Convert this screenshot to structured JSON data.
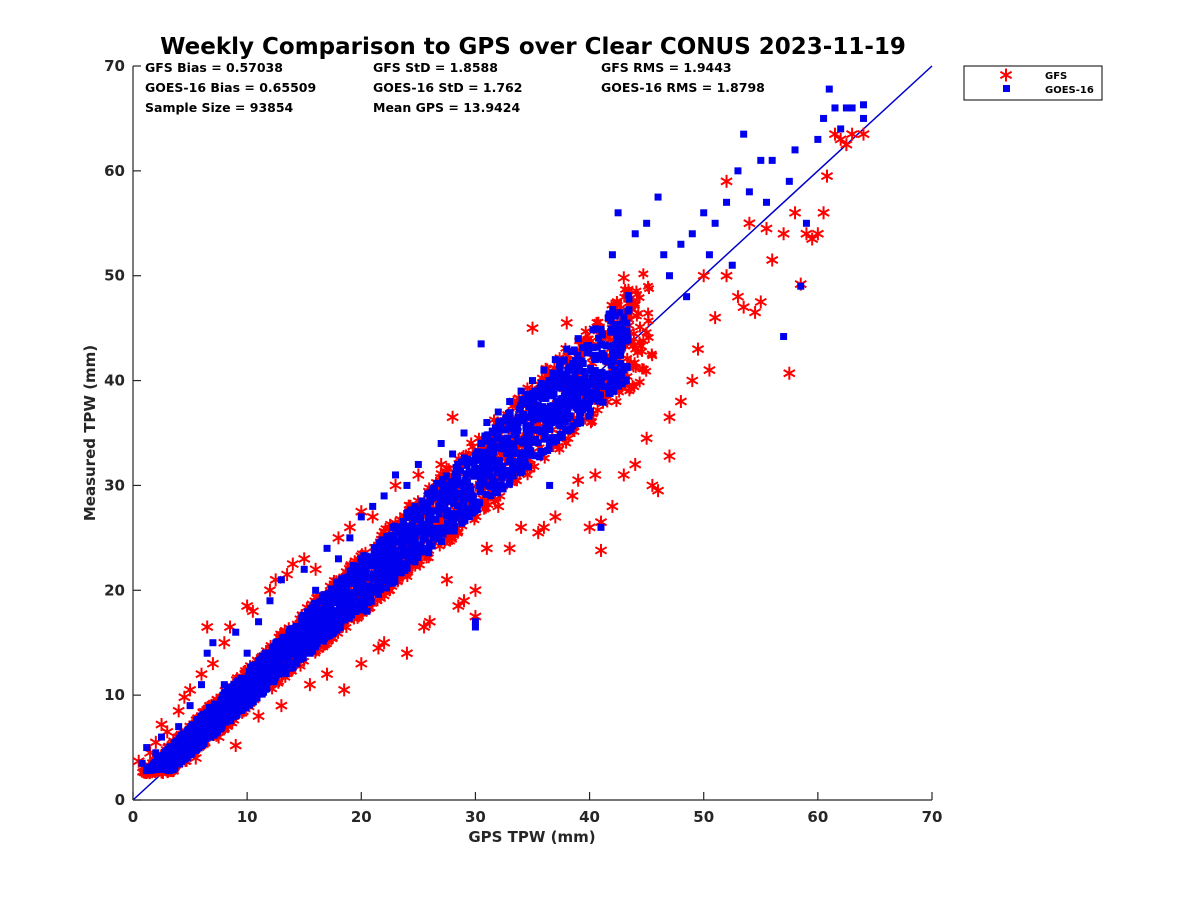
{
  "chart_data": {
    "type": "scatter",
    "title": "Weekly Comparison to GPS over Clear CONUS 2023-11-19",
    "xlabel": "GPS TPW (mm)",
    "ylabel": "Measured TPW (mm)",
    "xlim": [
      0,
      70
    ],
    "ylim": [
      0,
      70
    ],
    "xticks": [
      0,
      10,
      20,
      30,
      40,
      50,
      60,
      70
    ],
    "yticks": [
      0,
      10,
      20,
      30,
      40,
      50,
      60,
      70
    ],
    "legend_position": "outside-top-right",
    "grid": false,
    "reference_line": {
      "type": "one-to-one",
      "from": [
        0,
        0
      ],
      "to": [
        70,
        70
      ],
      "color": "#0000cc"
    },
    "stats": {
      "gfs_bias": "GFS Bias = 0.57038",
      "gfs_std": "GFS StD = 1.8588",
      "gfs_rms": "GFS RMS = 1.9443",
      "goes_bias": "GOES-16 Bias = 0.65509",
      "goes_std": "GOES-16 StD = 1.762",
      "goes_rms": "GOES-16 RMS = 1.8798",
      "sample_size": "Sample Size = 93854",
      "mean_gps": "Mean GPS = 13.9424"
    },
    "series": [
      {
        "name": "GFS",
        "marker": "asterisk",
        "color": "#ff0000",
        "points": [
          [
            0.5,
            3.7
          ],
          [
            1,
            3.2
          ],
          [
            1.5,
            4.5
          ],
          [
            2,
            5.5
          ],
          [
            2.5,
            7.2
          ],
          [
            3,
            6.5
          ],
          [
            3.5,
            2.8
          ],
          [
            4,
            8.5
          ],
          [
            4.5,
            9.8
          ],
          [
            5,
            10.5
          ],
          [
            5.5,
            4
          ],
          [
            6,
            12
          ],
          [
            6.5,
            16.5
          ],
          [
            7,
            13
          ],
          [
            7.5,
            6
          ],
          [
            8,
            15
          ],
          [
            8.5,
            16.5
          ],
          [
            9,
            5.2
          ],
          [
            10,
            18.5
          ],
          [
            10.5,
            18
          ],
          [
            11,
            8
          ],
          [
            12,
            20
          ],
          [
            12.5,
            21
          ],
          [
            13,
            9
          ],
          [
            13.5,
            21.5
          ],
          [
            14,
            22.5
          ],
          [
            15,
            23
          ],
          [
            15.5,
            11
          ],
          [
            16,
            22
          ],
          [
            17,
            12
          ],
          [
            18,
            25
          ],
          [
            18.5,
            10.5
          ],
          [
            19,
            26
          ],
          [
            20,
            13
          ],
          [
            20,
            27.5
          ],
          [
            21,
            27
          ],
          [
            21.5,
            14.5
          ],
          [
            22,
            15
          ],
          [
            23,
            30
          ],
          [
            24,
            14
          ],
          [
            25,
            31
          ],
          [
            25.5,
            16.5
          ],
          [
            26,
            17
          ],
          [
            27,
            32
          ],
          [
            27.5,
            21
          ],
          [
            28,
            36.5
          ],
          [
            28.5,
            18.5
          ],
          [
            29,
            19
          ],
          [
            30,
            17.5
          ],
          [
            30,
            20
          ],
          [
            31,
            24
          ],
          [
            32,
            28
          ],
          [
            33,
            24
          ],
          [
            34,
            26
          ],
          [
            35,
            45
          ],
          [
            35.5,
            25.5
          ],
          [
            36,
            26
          ],
          [
            37,
            27
          ],
          [
            38,
            45.5
          ],
          [
            38.5,
            29
          ],
          [
            39,
            30.5
          ],
          [
            40,
            26
          ],
          [
            40.5,
            31
          ],
          [
            41,
            23.8
          ],
          [
            41,
            26.5
          ],
          [
            42,
            28
          ],
          [
            42.5,
            45
          ],
          [
            43,
            31
          ],
          [
            43,
            49.8
          ],
          [
            44,
            32
          ],
          [
            45,
            34.5
          ],
          [
            45.5,
            30
          ],
          [
            46,
            29.5
          ],
          [
            47,
            32.8
          ],
          [
            47,
            36.5
          ],
          [
            48,
            38
          ],
          [
            49,
            40
          ],
          [
            49.5,
            43
          ],
          [
            50,
            50
          ],
          [
            50.5,
            41
          ],
          [
            51,
            46
          ],
          [
            52,
            59
          ],
          [
            52,
            50
          ],
          [
            53,
            48
          ],
          [
            53.5,
            47
          ],
          [
            54,
            55
          ],
          [
            54.5,
            46.5
          ],
          [
            55,
            47.5
          ],
          [
            55.5,
            54.5
          ],
          [
            56,
            51.5
          ],
          [
            57,
            54
          ],
          [
            57.5,
            40.7
          ],
          [
            58,
            56
          ],
          [
            58.5,
            49.2
          ],
          [
            59,
            54
          ],
          [
            59.5,
            53.5
          ],
          [
            60,
            54
          ],
          [
            60.5,
            56
          ],
          [
            60.8,
            59.5
          ],
          [
            61.5,
            63.5
          ],
          [
            62,
            63
          ],
          [
            62.5,
            62.5
          ],
          [
            63,
            63.5
          ],
          [
            64,
            63.5
          ]
        ]
      },
      {
        "name": "GOES-16",
        "marker": "square",
        "color": "#0000ee",
        "points": [
          [
            0.8,
            3.5
          ],
          [
            1.2,
            5
          ],
          [
            2,
            4.5
          ],
          [
            2.5,
            6
          ],
          [
            3,
            3
          ],
          [
            4,
            7
          ],
          [
            5,
            9
          ],
          [
            6,
            11
          ],
          [
            6.5,
            14
          ],
          [
            7,
            15
          ],
          [
            8,
            11
          ],
          [
            9,
            16
          ],
          [
            10,
            14
          ],
          [
            11,
            17
          ],
          [
            12,
            19
          ],
          [
            13,
            21
          ],
          [
            14,
            16
          ],
          [
            15,
            22
          ],
          [
            16,
            20
          ],
          [
            17,
            24
          ],
          [
            18,
            23
          ],
          [
            19,
            25
          ],
          [
            20,
            27
          ],
          [
            20.5,
            18
          ],
          [
            21,
            28
          ],
          [
            22,
            29
          ],
          [
            23,
            31
          ],
          [
            24,
            30
          ],
          [
            25,
            32
          ],
          [
            26,
            29
          ],
          [
            27,
            34
          ],
          [
            28,
            33
          ],
          [
            29,
            35
          ],
          [
            30,
            16.5
          ],
          [
            30,
            17
          ],
          [
            30.5,
            43.5
          ],
          [
            31,
            36
          ],
          [
            32,
            37
          ],
          [
            33,
            38
          ],
          [
            34,
            39
          ],
          [
            35,
            40
          ],
          [
            36,
            41
          ],
          [
            36.5,
            30
          ],
          [
            37,
            42
          ],
          [
            38,
            43
          ],
          [
            39,
            44
          ],
          [
            40,
            38
          ],
          [
            40.5,
            42
          ],
          [
            41,
            26
          ],
          [
            42,
            52
          ],
          [
            42.5,
            56
          ],
          [
            43,
            46
          ],
          [
            44,
            54
          ],
          [
            45,
            55
          ],
          [
            46,
            57.5
          ],
          [
            46.5,
            52
          ],
          [
            47,
            50
          ],
          [
            48,
            53
          ],
          [
            48.5,
            48
          ],
          [
            49,
            54
          ],
          [
            50,
            56
          ],
          [
            50.5,
            52
          ],
          [
            51,
            55
          ],
          [
            52,
            57
          ],
          [
            52.5,
            51
          ],
          [
            53,
            60
          ],
          [
            53.5,
            63.5
          ],
          [
            54,
            58
          ],
          [
            55,
            61
          ],
          [
            55.5,
            57
          ],
          [
            56,
            61
          ],
          [
            57,
            44.2
          ],
          [
            57.5,
            59
          ],
          [
            58,
            62
          ],
          [
            58.5,
            49
          ],
          [
            59,
            55
          ],
          [
            60,
            63
          ],
          [
            60.5,
            65
          ],
          [
            61,
            67.8
          ],
          [
            61.5,
            66
          ],
          [
            62,
            64
          ],
          [
            62.5,
            66
          ],
          [
            63,
            66
          ],
          [
            64,
            66.3
          ],
          [
            64,
            65
          ]
        ]
      }
    ]
  }
}
